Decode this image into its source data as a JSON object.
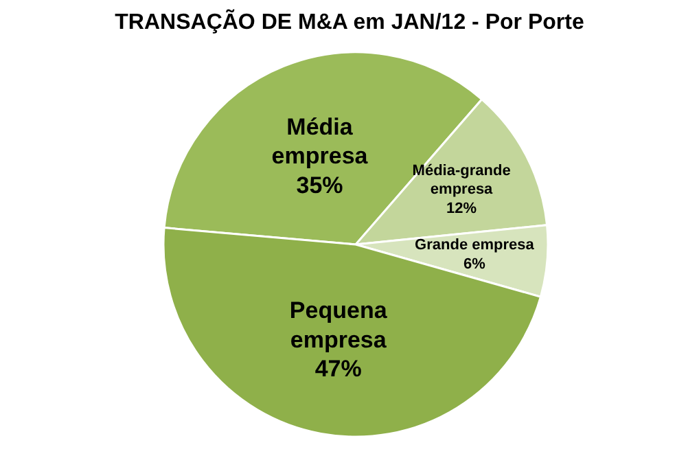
{
  "chart_data": {
    "type": "pie",
    "title": "TRANSAÇÃO DE M&A em JAN/12 - Por Porte",
    "categories": [
      "Média empresa",
      "Média-grande empresa",
      "Grande empresa",
      "Pequena empresa"
    ],
    "values": [
      35,
      12,
      6,
      47
    ],
    "value_labels": [
      "35%",
      "12%",
      "6%",
      "47%"
    ],
    "colors": [
      "#9bbb59",
      "#c3d69b",
      "#d7e4bd",
      "#8fb04a"
    ],
    "legend": false
  }
}
